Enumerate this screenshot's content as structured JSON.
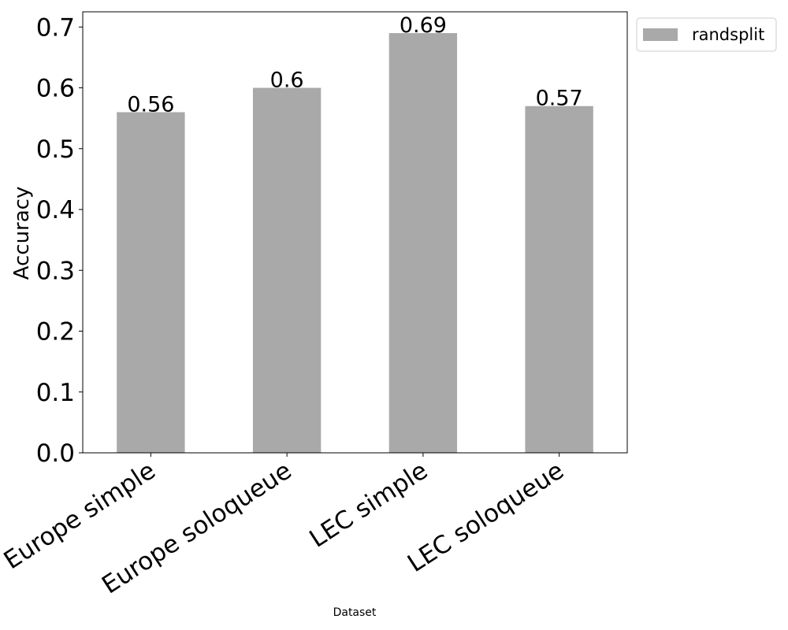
{
  "chart_data": {
    "type": "bar",
    "categories": [
      "Europe simple",
      "Europe soloqueue",
      "LEC simple",
      "LEC soloqueue"
    ],
    "series": [
      {
        "name": "randsplit",
        "values": [
          0.56,
          0.6,
          0.69,
          0.57
        ],
        "color": "#a9a9a9"
      }
    ],
    "data_labels": [
      "0.56",
      "0.6",
      "0.69",
      "0.57"
    ],
    "xlabel": "Dataset",
    "ylabel": "Accuracy",
    "ylim": [
      0,
      0.725
    ],
    "yticks": [
      0.0,
      0.1,
      0.2,
      0.3,
      0.4,
      0.5,
      0.6,
      0.7
    ],
    "ytick_labels": [
      "0.0",
      "0.1",
      "0.2",
      "0.3",
      "0.4",
      "0.5",
      "0.6",
      "0.7"
    ],
    "grid": false,
    "legend_position": "outside-top-right"
  }
}
